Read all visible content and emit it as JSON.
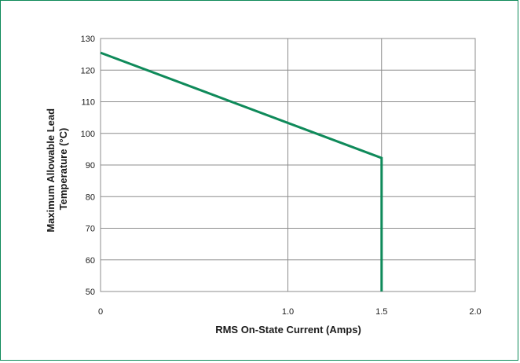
{
  "chart_data": {
    "type": "line",
    "xlabel": "RMS On-State Current (Amps)",
    "ylabel": [
      "Maximum Allowable Lead",
      "Temperature (°C)"
    ],
    "xlim": [
      0,
      2.0
    ],
    "ylim": [
      50,
      130
    ],
    "x_ticks": [
      {
        "value": 0,
        "label": "0"
      },
      {
        "value": 1.0,
        "label": "1.0"
      },
      {
        "value": 1.5,
        "label": "1.5"
      },
      {
        "value": 2.0,
        "label": "2.0"
      }
    ],
    "y_ticks": [
      50,
      60,
      70,
      80,
      90,
      100,
      110,
      120,
      130
    ],
    "grid": true,
    "series": [
      {
        "color": "#0f8a5a",
        "points": [
          [
            0,
            125.5
          ],
          [
            1.5,
            92.2
          ],
          [
            1.5,
            50
          ]
        ]
      }
    ]
  },
  "colors": {
    "frame": "#0f8a5a",
    "grid": "#8c8c8c",
    "line": "#0f8a5a"
  }
}
